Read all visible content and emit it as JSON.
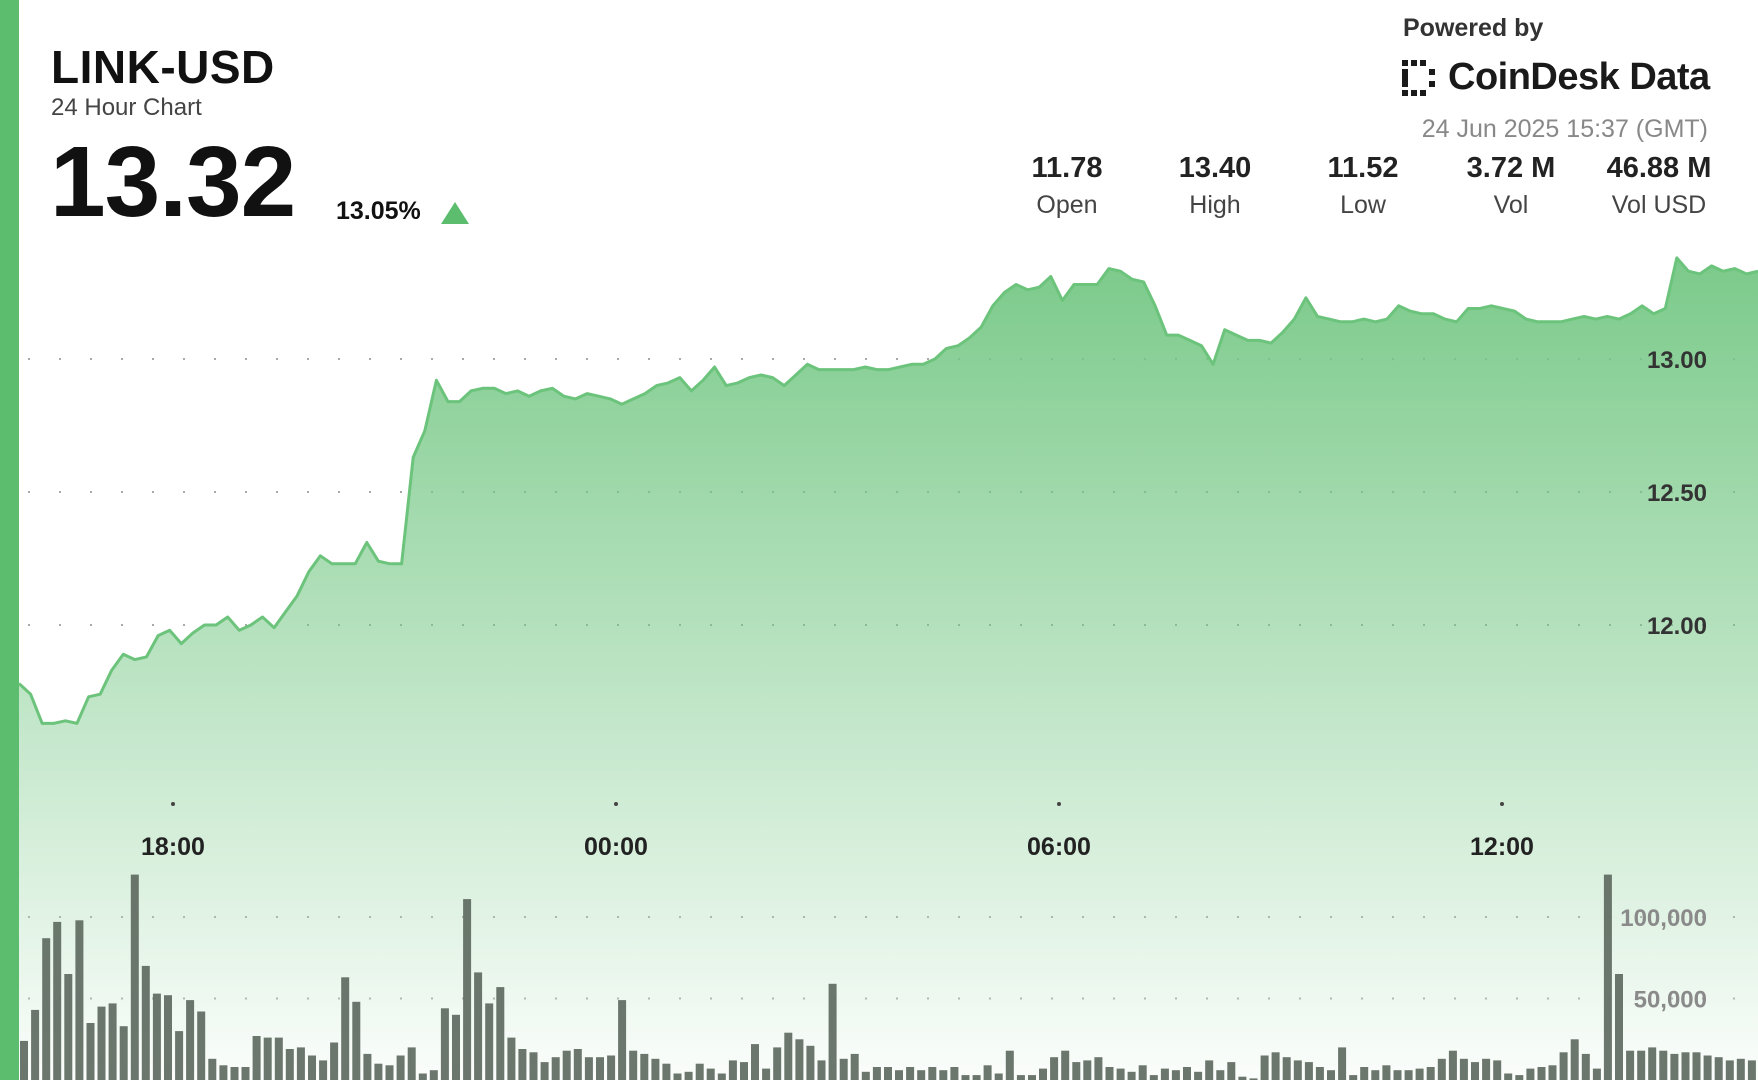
{
  "header": {
    "symbol": "LINK-USD",
    "subtitle": "24 Hour Chart",
    "price": "13.32",
    "change": "13.05%",
    "change_direction": "up",
    "powered_by": "Powered by",
    "brand": "CoinDesk Data",
    "brand_icon": "coindesk-logo-icon",
    "timestamp": "24 Jun 2025 15:37 (GMT)"
  },
  "stats": [
    {
      "value": "11.78",
      "label": "Open"
    },
    {
      "value": "13.40",
      "label": "High"
    },
    {
      "value": "11.52",
      "label": "Low"
    },
    {
      "value": "3.72 M",
      "label": "Vol"
    },
    {
      "value": "46.88 M",
      "label": "Vol USD"
    }
  ],
  "colors": {
    "accent": "#5cbd6e",
    "line": "#6cc37b",
    "area_top": "#74c784",
    "volume_bars": "#5e6a5f"
  },
  "chart_data": [
    {
      "type": "area",
      "title": "",
      "xlabel": "",
      "ylabel": "",
      "x_ticks": [
        "18:00",
        "00:00",
        "06:00",
        "12:00"
      ],
      "y_ticks": [
        "13.00",
        "12.50",
        "12.00"
      ],
      "ylim": [
        11.3,
        13.4
      ],
      "grid": true,
      "series": [
        {
          "values": [
            11.78,
            11.74,
            11.63,
            11.63,
            11.64,
            11.63,
            11.73,
            11.74,
            11.83,
            11.89,
            11.87,
            11.88,
            11.96,
            11.98,
            11.93,
            11.97,
            12.0,
            12.0,
            12.03,
            11.98,
            12.0,
            12.03,
            11.99,
            12.05,
            12.11,
            12.2,
            12.26,
            12.23,
            12.23,
            12.23,
            12.31,
            12.24,
            12.23,
            12.23,
            12.63,
            12.73,
            12.92,
            12.84,
            12.84,
            12.88,
            12.89,
            12.89,
            12.87,
            12.88,
            12.86,
            12.88,
            12.89,
            12.86,
            12.85,
            12.87,
            12.86,
            12.85,
            12.83,
            12.85,
            12.87,
            12.9,
            12.91,
            12.93,
            12.88,
            12.92,
            12.97,
            12.9,
            12.91,
            12.93,
            12.94,
            12.93,
            12.9,
            12.94,
            12.98,
            12.96,
            12.96,
            12.96,
            12.96,
            12.97,
            12.96,
            12.96,
            12.97,
            12.98,
            12.98,
            13.0,
            13.04,
            13.05,
            13.08,
            13.12,
            13.2,
            13.25,
            13.28,
            13.26,
            13.27,
            13.31,
            13.22,
            13.28,
            13.28,
            13.28,
            13.34,
            13.33,
            13.3,
            13.29,
            13.2,
            13.09,
            13.09,
            13.07,
            13.05,
            12.98,
            13.11,
            13.09,
            13.07,
            13.07,
            13.06,
            13.1,
            13.15,
            13.23,
            13.16,
            13.15,
            13.14,
            13.14,
            13.15,
            13.14,
            13.15,
            13.2,
            13.18,
            13.17,
            13.17,
            13.15,
            13.14,
            13.19,
            13.19,
            13.2,
            13.19,
            13.18,
            13.15,
            13.14,
            13.14,
            13.14,
            13.15,
            13.16,
            13.15,
            13.16,
            13.15,
            13.17,
            13.2,
            13.17,
            13.19,
            13.38,
            13.33,
            13.32,
            13.35,
            13.33,
            13.34,
            13.32,
            13.33
          ]
        }
      ]
    },
    {
      "type": "bar",
      "title": "",
      "xlabel": "",
      "ylabel": "",
      "y_ticks": [
        "100,000",
        "50,000"
      ],
      "ylim": [
        0,
        190000
      ],
      "series": [
        {
          "values": [
            24000,
            43000,
            87000,
            97000,
            65000,
            98000,
            35000,
            45000,
            47000,
            33000,
            126000,
            70000,
            53000,
            52000,
            30000,
            49000,
            42000,
            13000,
            9000,
            8000,
            8000,
            27000,
            26000,
            26000,
            19000,
            20000,
            15000,
            12000,
            23000,
            63000,
            48000,
            16000,
            10000,
            9000,
            15000,
            20000,
            4000,
            6000,
            44000,
            40000,
            111000,
            66000,
            47000,
            57000,
            26000,
            19000,
            17000,
            11000,
            14000,
            18000,
            19000,
            14000,
            14000,
            15000,
            49000,
            18000,
            16000,
            13000,
            10000,
            4000,
            5000,
            10000,
            7000,
            4000,
            12000,
            11000,
            22000,
            7000,
            20000,
            29000,
            25000,
            21000,
            12000,
            59000,
            13000,
            16000,
            5000,
            8000,
            8000,
            6000,
            8000,
            6000,
            8000,
            6000,
            8000,
            3000,
            3000,
            9000,
            4000,
            18000,
            3000,
            3000,
            7000,
            14000,
            18000,
            11000,
            12000,
            14000,
            8000,
            7000,
            5000,
            9000,
            3000,
            7000,
            6000,
            8000,
            5000,
            12000,
            6000,
            11000,
            2000,
            1000,
            15000,
            17000,
            14000,
            12000,
            11000,
            8000,
            6000,
            20000,
            3000,
            8000,
            6000,
            9000,
            6000,
            6000,
            7000,
            8000,
            13000,
            18000,
            13000,
            11000,
            13000,
            12000,
            4000,
            3000,
            7000,
            8000,
            9000,
            17000,
            25000,
            16000,
            7000,
            126000,
            65000,
            18000,
            18000,
            20000,
            18000,
            16000,
            17000,
            17000,
            15000,
            14000,
            12000,
            13000,
            12000
          ]
        }
      ]
    }
  ]
}
